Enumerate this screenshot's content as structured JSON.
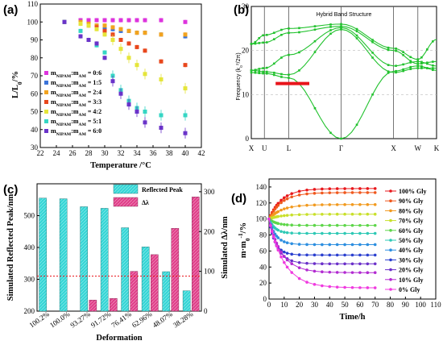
{
  "chart_data": [
    {
      "panel_label": "(a)",
      "type": "scatter",
      "xlabel": "Temperature /°C",
      "ylabel": "L/L0/%",
      "xlim": [
        22,
        42
      ],
      "ylim": [
        30,
        110
      ],
      "xticks": [
        22,
        24,
        26,
        28,
        30,
        32,
        34,
        36,
        38,
        40,
        42
      ],
      "yticks": [
        30,
        40,
        50,
        60,
        70,
        80,
        90,
        100,
        110
      ],
      "legend_position": "left",
      "series": [
        {
          "name": "mNIPAM:mAM = 0:6",
          "color": "#dd33dd",
          "marker": "square",
          "x": [
            25,
            27,
            28,
            29,
            30,
            31,
            32,
            33,
            34,
            35,
            37,
            40
          ],
          "y": [
            100,
            101,
            101,
            101,
            101,
            101,
            101,
            101,
            101,
            101,
            101,
            100
          ]
        },
        {
          "name": "mNIPAM:mAM = 1:5",
          "color": "#3b73d9",
          "marker": "square",
          "x": [
            25,
            27,
            28,
            29,
            30,
            31,
            32,
            33,
            34,
            35,
            37,
            40
          ],
          "y": [
            100,
            100,
            99,
            98,
            97,
            96,
            95,
            95,
            94,
            94,
            93,
            92
          ]
        },
        {
          "name": "mNIPAM:mAM = 2:4",
          "color": "#f2a31f",
          "marker": "square",
          "x": [
            25,
            27,
            28,
            29,
            30,
            31,
            32,
            33,
            34,
            35,
            37,
            40
          ],
          "y": [
            100,
            100,
            99,
            98,
            98,
            97,
            96,
            95,
            94,
            94,
            93,
            93
          ]
        },
        {
          "name": "mNIPAM:mAM = 3:3",
          "color": "#e8471c",
          "marker": "square",
          "x": [
            25,
            27,
            28,
            29,
            30,
            31,
            32,
            33,
            34,
            35,
            37,
            40
          ],
          "y": [
            100,
            99,
            98,
            97,
            95,
            93,
            90,
            88,
            86,
            84,
            78,
            76
          ]
        },
        {
          "name": "mNIPAM:mAM = 4:2",
          "color": "#e5e53a",
          "marker": "square",
          "x": [
            25,
            27,
            28,
            29,
            30,
            31,
            32,
            33,
            34,
            35,
            37,
            40
          ],
          "y": [
            100,
            99,
            98,
            96,
            93,
            90,
            85,
            80,
            76,
            71,
            68,
            63
          ]
        },
        {
          "name": "mNIPAM:mAM = 5:1",
          "color": "#35d6c4",
          "marker": "square",
          "x": [
            25,
            27,
            28,
            29,
            30,
            31,
            32,
            33,
            34,
            35,
            37,
            40
          ],
          "y": [
            100,
            95,
            90,
            87,
            83,
            70,
            62,
            56,
            52,
            50,
            48,
            48
          ]
        },
        {
          "name": "mNIPAM:mAM = 6:0",
          "color": "#6a33c9",
          "marker": "square",
          "x": [
            25,
            27,
            28,
            29,
            30,
            31,
            32,
            33,
            34,
            35,
            37,
            40
          ],
          "y": [
            100,
            92,
            90,
            88,
            80,
            67,
            60,
            54,
            50,
            44,
            41,
            38
          ]
        }
      ]
    },
    {
      "panel_label": "(b)",
      "type": "line",
      "title": "Hybrid Band Structure",
      "ylabel": "Frequency (k0^2/2π)",
      "ylim": [
        0,
        30
      ],
      "yticks": [
        0,
        10,
        20,
        30
      ],
      "x_points": [
        "X",
        "U",
        "L",
        "Γ",
        "X",
        "W",
        "K"
      ],
      "x_positions": [
        0,
        0.7,
        2.0,
        4.8,
        7.6,
        8.9,
        9.9
      ],
      "color": "#22c22e",
      "band_gap": {
        "y": 12.5,
        "x_range": [
          1.3,
          3.1
        ],
        "color": "#e8141b"
      },
      "bands": [
        [
          [
            0,
            21.5
          ],
          [
            0.7,
            23.5
          ],
          [
            2.0,
            25.0
          ],
          [
            4.8,
            26.0
          ],
          [
            7.6,
            20.5
          ],
          [
            8.9,
            18.0
          ],
          [
            9.9,
            22.5
          ]
        ],
        [
          [
            0,
            21.5
          ],
          [
            0.7,
            21.8
          ],
          [
            2.0,
            24.0
          ],
          [
            4.8,
            25.5
          ],
          [
            7.6,
            20.0
          ],
          [
            8.9,
            17.0
          ],
          [
            9.9,
            17.5
          ]
        ],
        [
          [
            0,
            15.5
          ],
          [
            0.7,
            16.0
          ],
          [
            2.0,
            19.0
          ],
          [
            4.8,
            25.2
          ],
          [
            7.6,
            16.5
          ],
          [
            8.9,
            17.5
          ],
          [
            9.9,
            16.5
          ]
        ],
        [
          [
            0,
            15.5
          ],
          [
            0.7,
            15.2
          ],
          [
            2.0,
            14.5
          ],
          [
            4.8,
            24.8
          ],
          [
            7.6,
            15.0
          ],
          [
            8.9,
            16.0
          ],
          [
            9.9,
            16.0
          ]
        ],
        [
          [
            0,
            15.0
          ],
          [
            0.7,
            14.8
          ],
          [
            2.0,
            13.8
          ],
          [
            4.8,
            0
          ],
          [
            7.6,
            15.3
          ],
          [
            8.9,
            16.5
          ],
          [
            9.9,
            15.5
          ]
        ]
      ]
    },
    {
      "panel_label": "(c)",
      "type": "bar",
      "xlabel": "Deformation",
      "ylabel": "Simulated Reflected Peak/nm",
      "ylabel_right": "Simulated Δλ/nm",
      "categories": [
        "100.2%",
        "100.0%",
        "93.27%",
        "91.72%",
        "76.41%",
        "62.96%",
        "48.07%",
        "38.28%"
      ],
      "ylim": [
        200,
        600
      ],
      "yticks": [
        200,
        300,
        400,
        500
      ],
      "ylim_right": [
        0,
        320
      ],
      "yticks_right": [
        0,
        100,
        200,
        300
      ],
      "reference_line": 310,
      "series": [
        {
          "name": "Reflected Peak",
          "axis": "left",
          "color": "#35d6d6",
          "values": [
            555,
            553,
            528,
            523,
            462,
            402,
            324,
            264
          ]
        },
        {
          "name": "Δλ",
          "axis": "right",
          "color": "#e0408a",
          "values": [
            0,
            0,
            28,
            32,
            100,
            142,
            208,
            287
          ]
        }
      ]
    },
    {
      "panel_label": "(d)",
      "type": "line",
      "xlabel": "Time/h",
      "ylabel": "m·m0^-1/%",
      "xlim": [
        0,
        110
      ],
      "ylim": [
        0,
        150
      ],
      "xticks": [
        0,
        10,
        20,
        30,
        40,
        50,
        60,
        70,
        80,
        90,
        100,
        110
      ],
      "yticks": [
        0,
        20,
        40,
        60,
        80,
        100,
        120,
        140
      ],
      "x": [
        0,
        1,
        2,
        3,
        4,
        5,
        6,
        8,
        10,
        12,
        15,
        20,
        25,
        30,
        35,
        40,
        45,
        50,
        55,
        60,
        65,
        70
      ],
      "series": [
        {
          "name": "100% Gly",
          "color": "#e8171b",
          "plateau": 138,
          "k": 0.12
        },
        {
          "name": "90% Gly",
          "color": "#f0581d",
          "plateau": 133,
          "k": 0.12
        },
        {
          "name": "80% Gly",
          "color": "#f29a1f",
          "plateau": 118,
          "k": 0.12
        },
        {
          "name": "70% Gly",
          "color": "#c9e02a",
          "plateau": 106,
          "k": 0.12
        },
        {
          "name": "60% Gly",
          "color": "#5ed64a",
          "plateau": 92,
          "k": 0.2
        },
        {
          "name": "50% Gly",
          "color": "#2ec9b5",
          "plateau": 82,
          "k": 0.25
        },
        {
          "name": "40% Gly",
          "color": "#2d8fe0",
          "plateau": 68,
          "k": 0.22
        },
        {
          "name": "30% Gly",
          "color": "#2a3fcf",
          "plateau": 55,
          "k": 0.25
        },
        {
          "name": "20% Gly",
          "color": "#6a2fc9",
          "plateau": 44,
          "k": 0.18
        },
        {
          "name": "10% Gly",
          "color": "#b22ad1",
          "plateau": 33,
          "k": 0.12
        },
        {
          "name": "0% Gly",
          "color": "#f03adf",
          "plateau": 14,
          "k": 0.1
        }
      ]
    }
  ]
}
